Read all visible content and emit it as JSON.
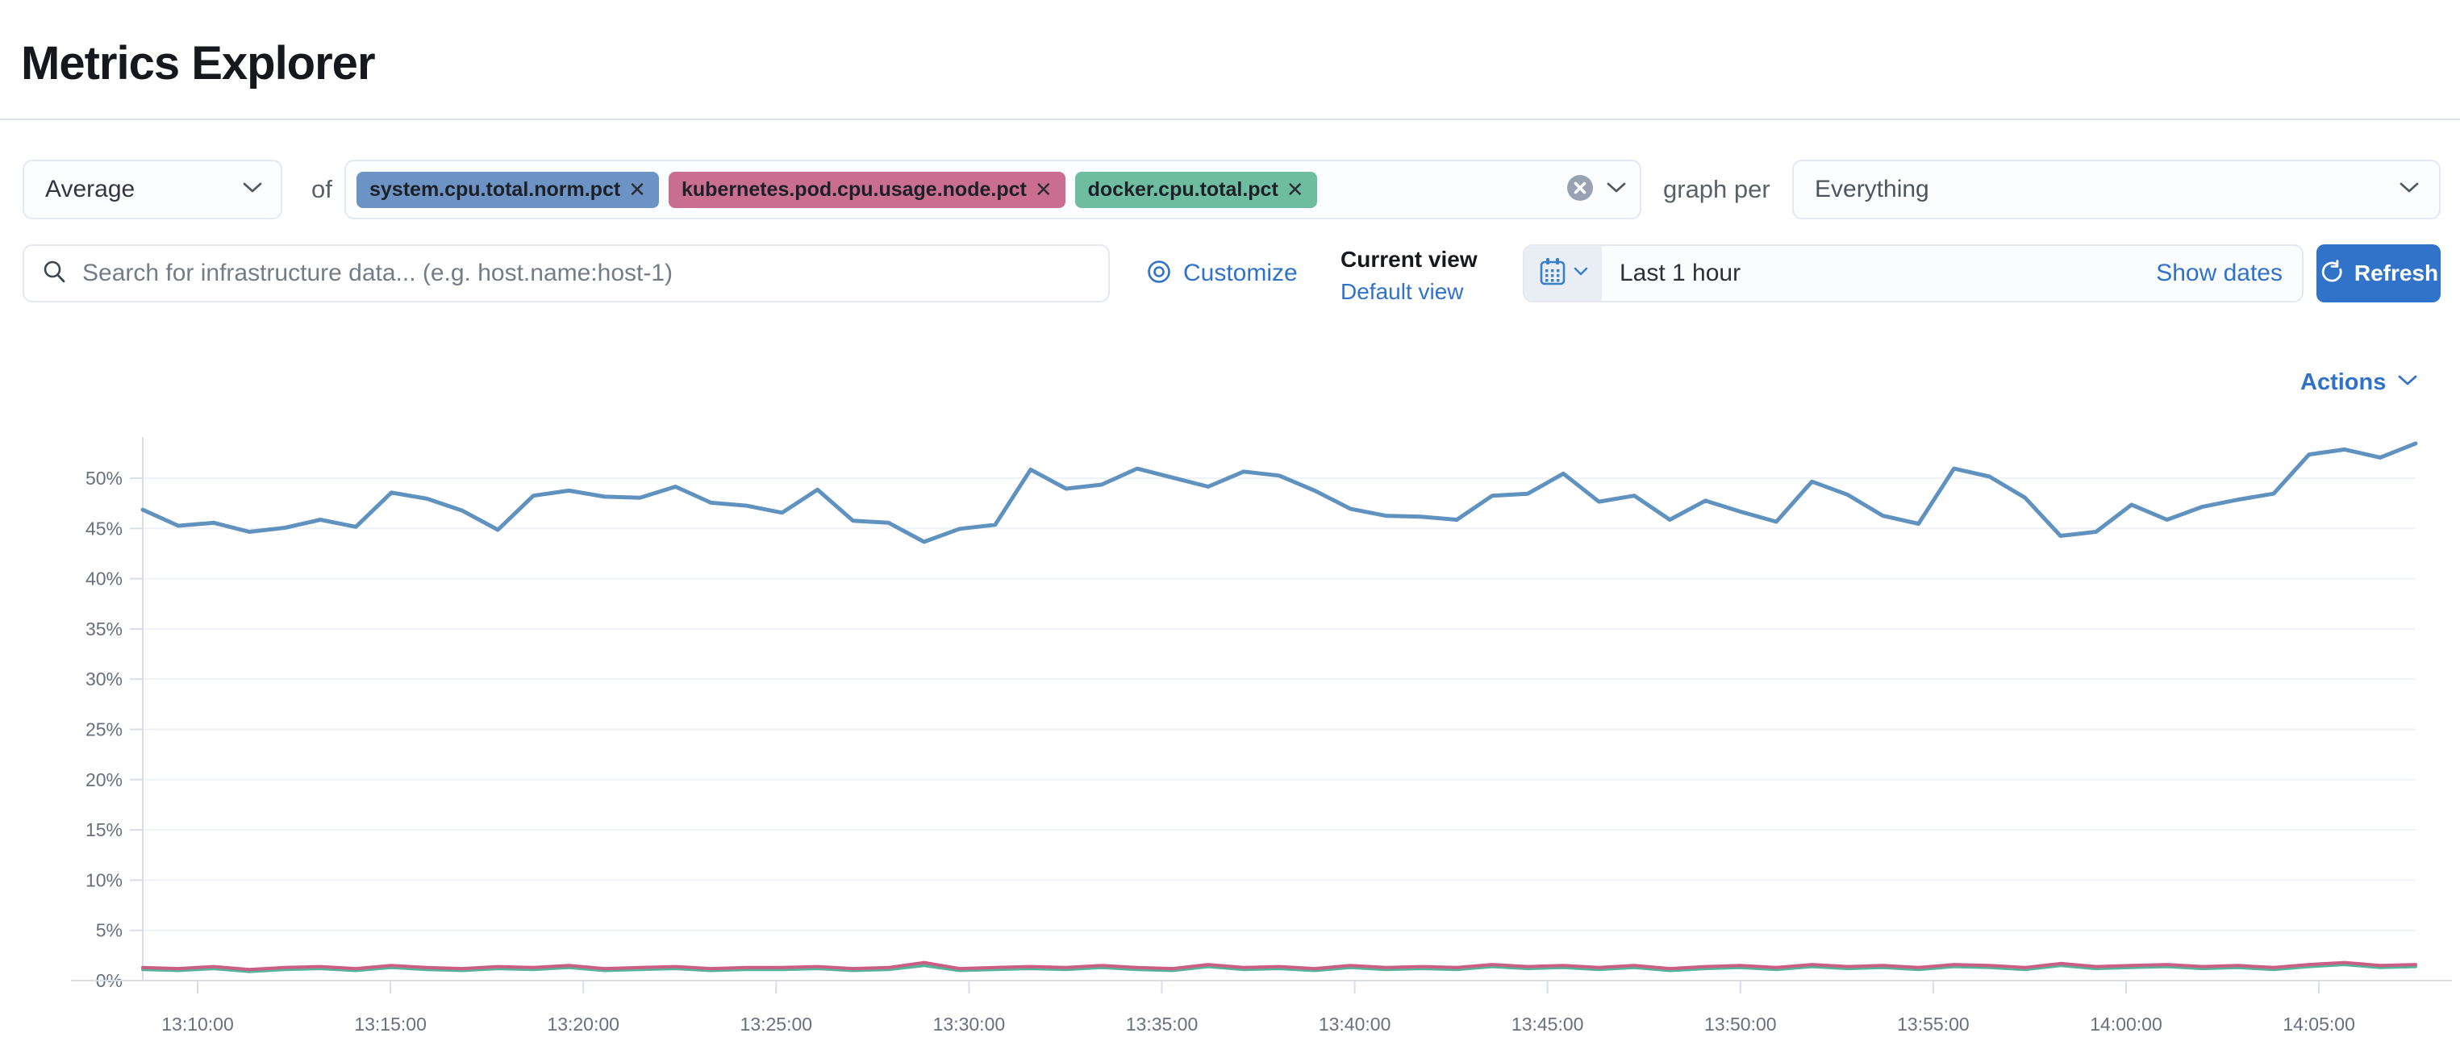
{
  "page": {
    "title": "Metrics Explorer"
  },
  "toolbar": {
    "aggregation": {
      "value": "Average"
    },
    "of_label": "of",
    "metrics": [
      {
        "label": "system.cpu.total.norm.pct",
        "color": "#6c93c3"
      },
      {
        "label": "kubernetes.pod.cpu.usage.node.pct",
        "color": "#c96e8e"
      },
      {
        "label": "docker.cpu.total.pct",
        "color": "#6ebda1"
      }
    ],
    "tag_remove_icon": "✕",
    "graph_per_label": "graph per",
    "graph_per_value": "Everything"
  },
  "searchbar": {
    "placeholder": "Search for infrastructure data... (e.g. host.name:host-1)",
    "value": ""
  },
  "view_controls": {
    "customize_label": "Customize",
    "current_view_label": "Current view",
    "default_view_label": "Default view"
  },
  "datepicker": {
    "value": "Last 1 hour",
    "show_dates_label": "Show dates"
  },
  "refresh": {
    "label": "Refresh"
  },
  "actions": {
    "label": "Actions"
  },
  "colors": {
    "accent_blue": "#3072ca",
    "button_blue": "#3173c9",
    "series_blue": "#6092c0",
    "series_pink": "#ca5f83",
    "series_green": "#54b399",
    "axis_text": "#69707d",
    "grid_line": "#eef1f5",
    "axis_line": "#d8dde8"
  },
  "chart_data": {
    "type": "line",
    "title": "",
    "xlabel": "",
    "ylabel": "",
    "units": "%",
    "ylim": [
      0,
      55
    ],
    "grid": true,
    "legend": "none",
    "y_ticks": [
      "0%",
      "5%",
      "10%",
      "15%",
      "20%",
      "25%",
      "30%",
      "35%",
      "40%",
      "45%",
      "50%"
    ],
    "x_labels": [
      "13:10:00",
      "13:15:00",
      "13:20:00",
      "13:25:00",
      "13:30:00",
      "13:35:00",
      "13:40:00",
      "13:45:00",
      "13:50:00",
      "13:55:00",
      "14:00:00",
      "14:05:00"
    ],
    "series": [
      {
        "name": "system.cpu.total.norm.pct",
        "color": "#6092c0",
        "width": 5,
        "values": [
          46.9,
          45.3,
          45.6,
          44.7,
          45.1,
          45.9,
          45.2,
          48.6,
          48.0,
          46.8,
          44.9,
          48.3,
          48.8,
          48.2,
          48.1,
          49.2,
          47.6,
          47.3,
          46.6,
          48.9,
          45.8,
          45.6,
          43.7,
          45.0,
          45.4,
          50.9,
          49.0,
          49.4,
          51.0,
          50.1,
          49.2,
          50.7,
          50.3,
          48.8,
          47.0,
          46.3,
          46.2,
          45.9,
          48.3,
          48.5,
          50.5,
          47.7,
          48.3,
          45.9,
          47.8,
          46.7,
          45.7,
          49.7,
          48.4,
          46.3,
          45.5,
          51.0,
          50.2,
          48.1,
          44.3,
          44.7,
          47.4,
          45.9,
          47.2,
          47.9,
          48.5,
          52.4,
          52.9,
          52.1,
          53.5
        ]
      },
      {
        "name": "docker.cpu.total.pct",
        "color": "#54b399",
        "width": 4,
        "values": [
          1.1,
          1.0,
          1.2,
          0.9,
          1.1,
          1.2,
          1.0,
          1.3,
          1.1,
          1.0,
          1.2,
          1.1,
          1.3,
          1.0,
          1.1,
          1.2,
          1.0,
          1.1,
          1.1,
          1.2,
          1.0,
          1.1,
          1.5,
          1.0,
          1.1,
          1.2,
          1.1,
          1.3,
          1.1,
          1.0,
          1.4,
          1.1,
          1.2,
          1.0,
          1.3,
          1.1,
          1.2,
          1.1,
          1.4,
          1.2,
          1.3,
          1.1,
          1.3,
          1.0,
          1.2,
          1.3,
          1.1,
          1.4,
          1.2,
          1.3,
          1.1,
          1.4,
          1.3,
          1.1,
          1.5,
          1.2,
          1.3,
          1.4,
          1.2,
          1.3,
          1.1,
          1.4,
          1.6,
          1.3,
          1.4
        ]
      },
      {
        "name": "kubernetes.pod.cpu.usage.node.pct",
        "color": "#ca5f83",
        "width": 4,
        "values": [
          1.3,
          1.2,
          1.4,
          1.1,
          1.3,
          1.4,
          1.2,
          1.5,
          1.3,
          1.2,
          1.4,
          1.3,
          1.5,
          1.2,
          1.3,
          1.4,
          1.2,
          1.3,
          1.3,
          1.4,
          1.2,
          1.3,
          1.8,
          1.2,
          1.3,
          1.4,
          1.3,
          1.5,
          1.3,
          1.2,
          1.6,
          1.3,
          1.4,
          1.2,
          1.5,
          1.3,
          1.4,
          1.3,
          1.6,
          1.4,
          1.5,
          1.3,
          1.5,
          1.2,
          1.4,
          1.5,
          1.3,
          1.6,
          1.4,
          1.5,
          1.3,
          1.6,
          1.5,
          1.3,
          1.7,
          1.4,
          1.5,
          1.6,
          1.4,
          1.5,
          1.3,
          1.6,
          1.8,
          1.5,
          1.6
        ]
      }
    ]
  }
}
